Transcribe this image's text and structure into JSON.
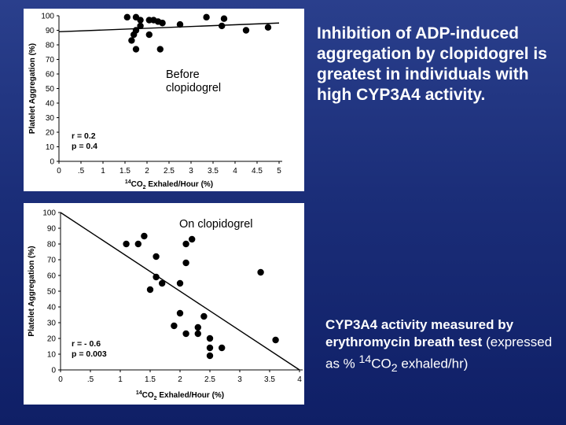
{
  "headline": "Inhibition of ADP-induced aggregation by clopidogrel is greatest in individuals with high CYP3A4 activity.",
  "footnote": {
    "bold": "CYP3A4 activity measured by erythromycin breath test",
    "pre": "(expressed as % ",
    "sup": "14",
    "mid": "CO",
    "sub": "2",
    "post": " exhaled/hr)"
  },
  "chart_data": [
    {
      "type": "scatter",
      "annotation": "Before clopidogrel",
      "xlabel_pre": "",
      "xlabel_sup": "14",
      "xlabel_main": "CO",
      "xlabel_sub": "2",
      "xlabel_post": " Exhaled/Hour (%)",
      "ylabel": "Platelet Aggregation (%)",
      "xlim": [
        0,
        5
      ],
      "ylim": [
        0,
        100
      ],
      "xticks": [
        0,
        0.5,
        1,
        1.5,
        2,
        2.5,
        3,
        3.5,
        4,
        4.5,
        5
      ],
      "xticklabels": [
        "0",
        ".5",
        "1",
        "1.5",
        "2",
        "2.5",
        "3",
        "3.5",
        "4",
        "4.5",
        "5"
      ],
      "yticks": [
        0,
        10,
        20,
        30,
        40,
        50,
        60,
        70,
        80,
        90,
        100
      ],
      "stats": [
        "r = 0.2",
        "p = 0.4"
      ],
      "fit": {
        "x0": 0,
        "y0": 89,
        "x1": 5,
        "y1": 95
      },
      "points": [
        {
          "x": 1.55,
          "y": 99
        },
        {
          "x": 1.75,
          "y": 99
        },
        {
          "x": 1.85,
          "y": 97
        },
        {
          "x": 2.05,
          "y": 97
        },
        {
          "x": 2.15,
          "y": 97
        },
        {
          "x": 2.25,
          "y": 96
        },
        {
          "x": 2.35,
          "y": 95
        },
        {
          "x": 1.85,
          "y": 93
        },
        {
          "x": 3.35,
          "y": 99
        },
        {
          "x": 3.75,
          "y": 98
        },
        {
          "x": 3.7,
          "y": 93
        },
        {
          "x": 2.75,
          "y": 94
        },
        {
          "x": 1.75,
          "y": 90
        },
        {
          "x": 1.7,
          "y": 87
        },
        {
          "x": 2.05,
          "y": 87
        },
        {
          "x": 1.65,
          "y": 83
        },
        {
          "x": 1.75,
          "y": 77
        },
        {
          "x": 2.3,
          "y": 77
        },
        {
          "x": 4.25,
          "y": 90
        },
        {
          "x": 4.75,
          "y": 92
        }
      ]
    },
    {
      "type": "scatter",
      "annotation": "On clopidogrel",
      "xlabel_sup": "14",
      "xlabel_main": "CO",
      "xlabel_sub": "2",
      "xlabel_post": " Exhaled/Hour (%)",
      "ylabel": "Platelet Aggregation (%)",
      "xlim": [
        0,
        4
      ],
      "ylim": [
        0,
        100
      ],
      "xticks": [
        0,
        0.5,
        1,
        1.5,
        2,
        2.5,
        3,
        3.5,
        4
      ],
      "xticklabels": [
        "0",
        ".5",
        "1",
        "1.5",
        "2",
        "2.5",
        "3",
        "3.5",
        "4"
      ],
      "yticks": [
        0,
        10,
        20,
        30,
        40,
        50,
        60,
        70,
        80,
        90,
        100
      ],
      "stats": [
        "r = - 0.6",
        "p = 0.003"
      ],
      "fit": {
        "x0": 0,
        "y0": 100,
        "x1": 4,
        "y1": 0
      },
      "points": [
        {
          "x": 1.1,
          "y": 80
        },
        {
          "x": 1.3,
          "y": 80
        },
        {
          "x": 1.4,
          "y": 85
        },
        {
          "x": 1.6,
          "y": 72
        },
        {
          "x": 2.1,
          "y": 80
        },
        {
          "x": 2.2,
          "y": 83
        },
        {
          "x": 2.1,
          "y": 68
        },
        {
          "x": 1.6,
          "y": 59
        },
        {
          "x": 1.7,
          "y": 55
        },
        {
          "x": 1.5,
          "y": 51
        },
        {
          "x": 2.0,
          "y": 55
        },
        {
          "x": 3.35,
          "y": 62
        },
        {
          "x": 2.0,
          "y": 36
        },
        {
          "x": 1.9,
          "y": 28
        },
        {
          "x": 2.1,
          "y": 23
        },
        {
          "x": 2.3,
          "y": 23
        },
        {
          "x": 2.3,
          "y": 27
        },
        {
          "x": 2.4,
          "y": 34
        },
        {
          "x": 2.5,
          "y": 20
        },
        {
          "x": 2.5,
          "y": 14
        },
        {
          "x": 2.5,
          "y": 9
        },
        {
          "x": 2.7,
          "y": 14
        },
        {
          "x": 3.6,
          "y": 19
        }
      ]
    }
  ]
}
